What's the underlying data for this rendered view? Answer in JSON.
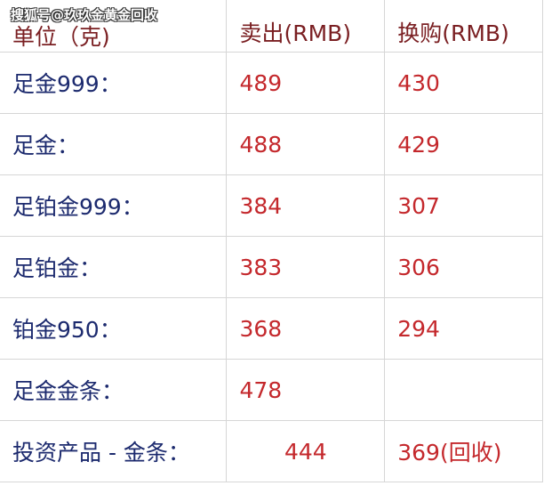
{
  "watermark": "搜狐号@玖玖金黄金回收",
  "table": {
    "headers": [
      "单位（克)",
      "卖出(RMB)",
      "换购(RMB)"
    ],
    "rows": [
      {
        "item": "足金999：",
        "sell": "489",
        "exchange": "430"
      },
      {
        "item": "足金：",
        "sell": "488",
        "exchange": "429"
      },
      {
        "item": "足铂金999：",
        "sell": "384",
        "exchange": "307"
      },
      {
        "item": "足铂金：",
        "sell": "383",
        "exchange": "306"
      },
      {
        "item": "铂金950：",
        "sell": "368",
        "exchange": "294"
      },
      {
        "item": "足金金条：",
        "sell": "478",
        "exchange": ""
      },
      {
        "item": "投资产品 - 金条：",
        "sell": "444",
        "exchange": "369(回收)"
      }
    ]
  },
  "colors": {
    "header": "#7a1f22",
    "label": "#1c2a6e",
    "value": "#c4282c"
  }
}
